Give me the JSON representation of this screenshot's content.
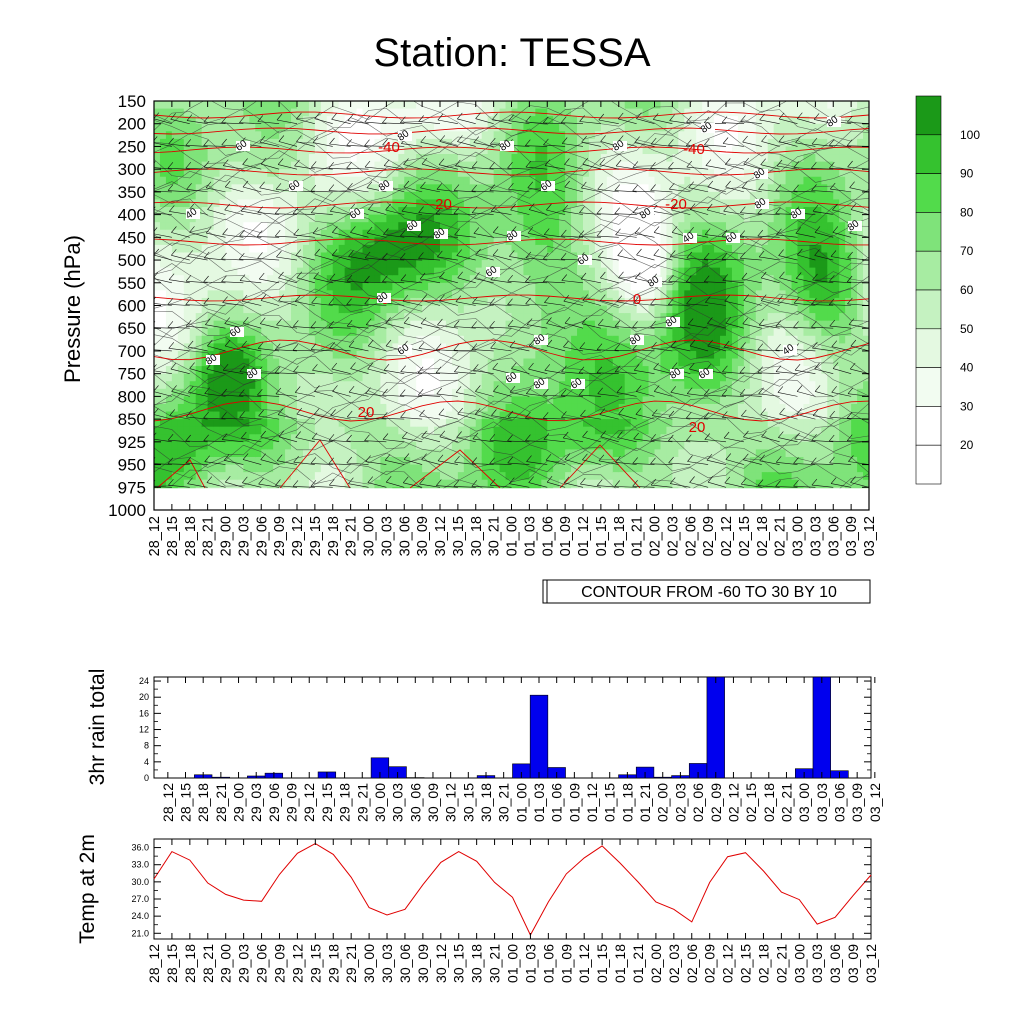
{
  "title": "Station: TESSA",
  "time_labels": [
    "28_12",
    "28_15",
    "28_18",
    "28_21",
    "29_00",
    "29_03",
    "29_06",
    "29_09",
    "29_12",
    "29_15",
    "29_18",
    "29_21",
    "30_00",
    "30_03",
    "30_06",
    "30_09",
    "30_12",
    "30_15",
    "30_18",
    "30_21",
    "01_00",
    "01_03",
    "01_06",
    "01_09",
    "01_12",
    "01_15",
    "01_18",
    "01_21",
    "02_00",
    "02_03",
    "02_06",
    "02_09",
    "02_12",
    "02_15",
    "02_18",
    "02_21",
    "03_00",
    "03_03",
    "03_06",
    "03_09",
    "03_12"
  ],
  "chart_data": [
    {
      "type": "heatmap",
      "ylabel": "Pressure (hPa)",
      "pressure_levels": [
        150,
        200,
        250,
        300,
        350,
        400,
        450,
        500,
        550,
        600,
        650,
        700,
        750,
        800,
        850,
        925,
        950,
        975,
        1000
      ],
      "fill_variable_levels": [
        20,
        30,
        40,
        50,
        60,
        70,
        80,
        90,
        100
      ],
      "fill_colors": [
        "#ffffff",
        "#f2fcf1",
        "#e4f9e1",
        "#c5f2c1",
        "#a7eca2",
        "#7fe37a",
        "#52db4b",
        "#35c22f",
        "#1b9918"
      ],
      "contour_info": "CONTOUR FROM -60 TO 30 BY 10",
      "temperature_contour_labels": [
        "-40",
        "-40",
        "-20",
        "-20",
        "0",
        "0",
        "20",
        "20"
      ],
      "humidity_contour_labels": [
        "60",
        "80",
        "80",
        "80",
        "80",
        "80",
        "60",
        "80",
        "60",
        "80",
        "40",
        "60",
        "60",
        "80",
        "80",
        "80",
        "40",
        "60",
        "80",
        "80",
        "80",
        "60",
        "60",
        "80",
        "80",
        "80",
        "60",
        "60",
        "80",
        "80",
        "40",
        "80",
        "80",
        "60",
        "80",
        "60",
        "80",
        "60"
      ]
    },
    {
      "type": "bar",
      "ylabel": "3hr rain total",
      "ylim": [
        0,
        25
      ],
      "yticks": [
        "0",
        "4",
        "8",
        "12",
        "16",
        "20",
        "24"
      ],
      "values": [
        0,
        0,
        0.8,
        0.2,
        0,
        0.5,
        1.2,
        0,
        0,
        1.5,
        0,
        0,
        5.0,
        2.8,
        0.1,
        0,
        0,
        0,
        0.6,
        0,
        3.5,
        20.5,
        2.6,
        0,
        0,
        0,
        0.8,
        2.7,
        0.2,
        0.6,
        3.6,
        25,
        0,
        0,
        0,
        0,
        2.3,
        25,
        1.8,
        0,
        0
      ],
      "bar_color": "#0000ee"
    },
    {
      "type": "line",
      "ylabel": "Temp at 2m",
      "ylim": [
        20,
        37.5
      ],
      "yticks": [
        "21.0",
        "24.0",
        "27.0",
        "30.0",
        "33.0",
        "36.0"
      ],
      "values": [
        30.5,
        35.3,
        33.8,
        29.8,
        27.8,
        26.8,
        26.6,
        31.3,
        35.0,
        36.7,
        34.8,
        30.8,
        25.5,
        24.2,
        25.2,
        29.5,
        33.4,
        35.3,
        33.6,
        29.9,
        27.3,
        20.7,
        26.5,
        31.4,
        34.2,
        36.3,
        33.3,
        30.0,
        26.5,
        25.2,
        23.0,
        29.9,
        34.4,
        35.1,
        31.9,
        28.2,
        26.9,
        22.6,
        23.8,
        27.6,
        31.2
      ],
      "line_color": "#e00000"
    }
  ]
}
